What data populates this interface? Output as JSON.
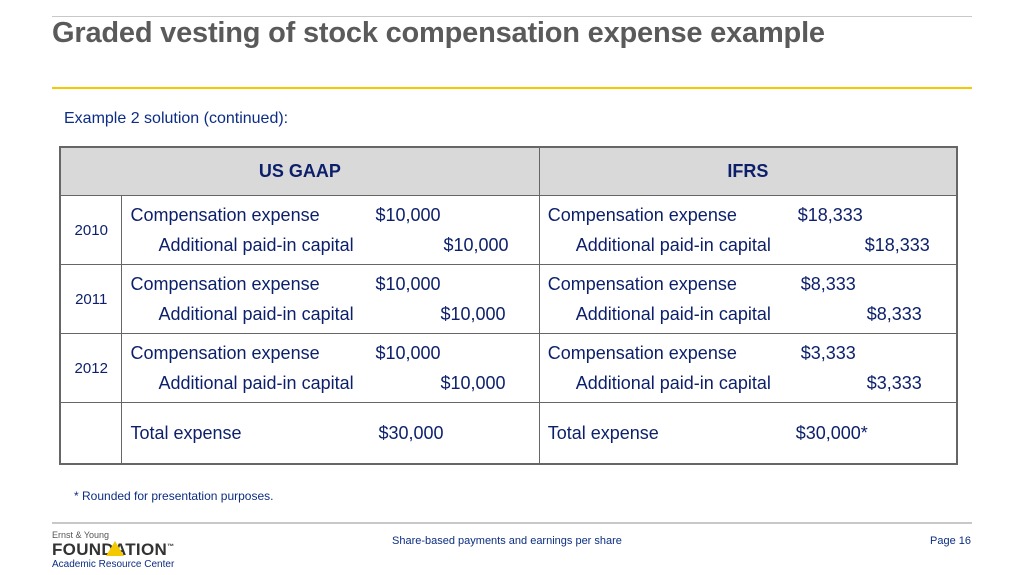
{
  "slide": {
    "title": "Graded vesting of stock compensation expense example",
    "subtitle": "Example 2 solution (continued):",
    "footnote": "* Rounded for presentation purposes.",
    "footer_center": "Share-based payments and earnings per share",
    "footer_page": "Page 16"
  },
  "logo": {
    "small_text": "Ernst & Young",
    "wordmark": "FOUNDATION",
    "trademark": "™",
    "subtext": "Academic Resource Center"
  },
  "table": {
    "headers": {
      "us_gaap": "US GAAP",
      "ifrs": "IFRS"
    },
    "rows": [
      {
        "year": "2010",
        "us": {
          "debit_label": "Compensation expense",
          "debit_amount": "$10,000",
          "credit_label": "Additional paid-in capital",
          "credit_amount": "$10,000"
        },
        "ifrs": {
          "debit_label": "Compensation expense",
          "debit_amount": "$18,333",
          "credit_label": "Additional paid-in capital",
          "credit_amount": "$18,333"
        }
      },
      {
        "year": "2011",
        "us": {
          "debit_label": "Compensation expense",
          "debit_amount": "$10,000",
          "credit_label": "Additional paid-in capital",
          "credit_amount": "$10,000"
        },
        "ifrs": {
          "debit_label": "Compensation expense",
          "debit_amount": "$8,333",
          "credit_label": "Additional paid-in capital",
          "credit_amount": "$8,333"
        }
      },
      {
        "year": "2012",
        "us": {
          "debit_label": "Compensation expense",
          "debit_amount": "$10,000",
          "credit_label": "Additional paid-in capital",
          "credit_amount": "$10,000"
        },
        "ifrs": {
          "debit_label": "Compensation expense",
          "debit_amount": "$3,333",
          "credit_label": "Additional paid-in capital",
          "credit_amount": "$3,333"
        }
      }
    ],
    "total": {
      "us": {
        "label": "Total expense",
        "amount": "$30,000"
      },
      "ifrs": {
        "label": "Total expense",
        "amount": "$30,000*"
      }
    }
  }
}
